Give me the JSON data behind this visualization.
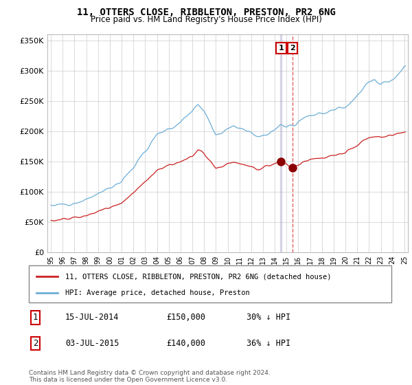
{
  "title": "11, OTTERS CLOSE, RIBBLETON, PRESTON, PR2 6NG",
  "subtitle": "Price paid vs. HM Land Registry's House Price Index (HPI)",
  "legend_line1": "11, OTTERS CLOSE, RIBBLETON, PRESTON, PR2 6NG (detached house)",
  "legend_line2": "HPI: Average price, detached house, Preston",
  "sale1_date": "15-JUL-2014",
  "sale1_price": "£150,000",
  "sale1_hpi": "30% ↓ HPI",
  "sale1_year": 2014.54,
  "sale1_value": 150000,
  "sale2_date": "03-JUL-2015",
  "sale2_price": "£140,000",
  "sale2_hpi": "36% ↓ HPI",
  "sale2_year": 2015.5,
  "sale2_value": 140000,
  "hpi_color": "#6baed6",
  "property_color": "#cb2020",
  "sale_marker_color": "#8b0000",
  "vline1_color": "#aaaacc",
  "vline2_color": "#e05050",
  "footer": "Contains HM Land Registry data © Crown copyright and database right 2024.\nThis data is licensed under the Open Government Licence v3.0.",
  "ylim": [
    0,
    360000
  ],
  "yticks": [
    0,
    50000,
    100000,
    150000,
    200000,
    250000,
    300000,
    350000
  ],
  "ytick_labels": [
    "£0",
    "£50K",
    "£100K",
    "£150K",
    "£200K",
    "£250K",
    "£300K",
    "£350K"
  ]
}
